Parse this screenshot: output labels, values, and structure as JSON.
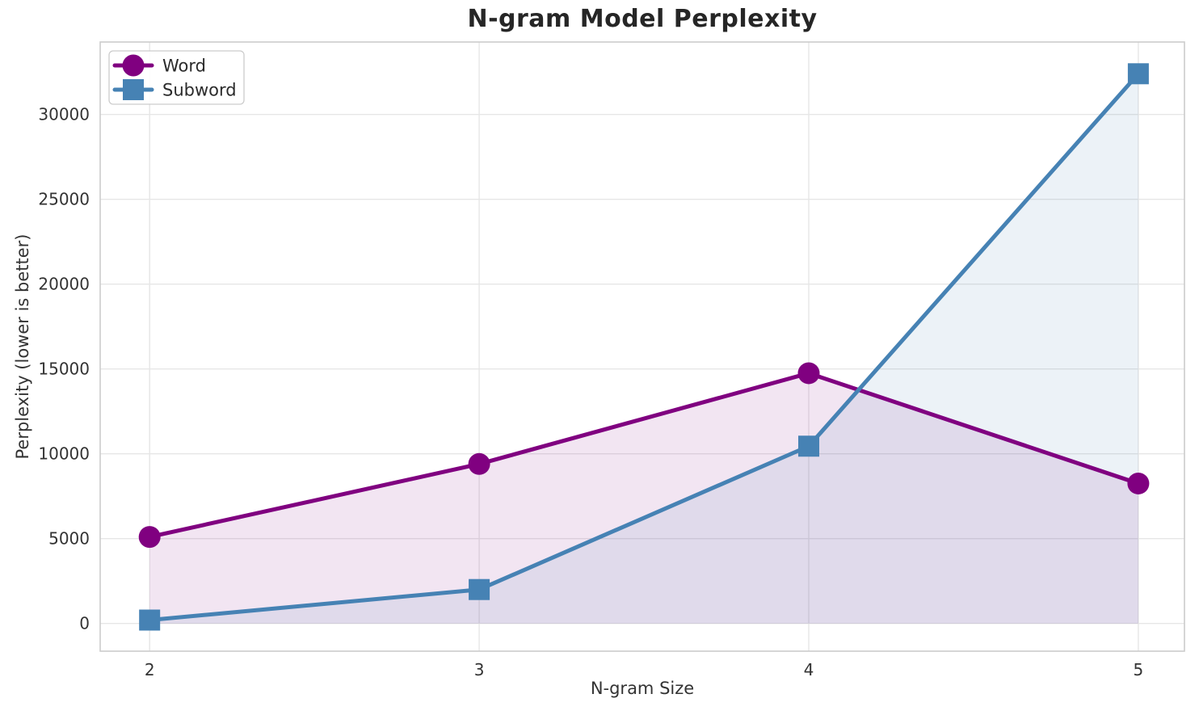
{
  "chart_data": {
    "type": "line",
    "title": "N-gram Model Perplexity",
    "xlabel": "N-gram Size",
    "ylabel": "Perplexity (lower is better)",
    "x": [
      2,
      3,
      4,
      5
    ],
    "x_tick_labels": [
      "2",
      "3",
      "4",
      "5"
    ],
    "y_ticks": [
      0,
      5000,
      10000,
      15000,
      20000,
      25000,
      30000
    ],
    "y_tick_labels": [
      "0",
      "5000",
      "10000",
      "15000",
      "20000",
      "25000",
      "30000"
    ],
    "series": [
      {
        "name": "Word",
        "marker": "circle",
        "color": "#800080",
        "fill_color": "rgba(128,0,128,0.10)",
        "values": [
          5100,
          9400,
          14750,
          8250
        ]
      },
      {
        "name": "Subword",
        "marker": "square",
        "color": "#4682B4",
        "fill_color": "rgba(70,130,180,0.10)",
        "values": [
          200,
          2000,
          10450,
          32400
        ]
      }
    ],
    "fill_to_baseline": 0,
    "grid": true,
    "grid_color": "#e6e6e6",
    "spine_color": "#cccccc",
    "legend_position": "upper-left",
    "xlim": [
      1.85,
      5.14
    ],
    "ylim": [
      -1633,
      34271
    ]
  }
}
